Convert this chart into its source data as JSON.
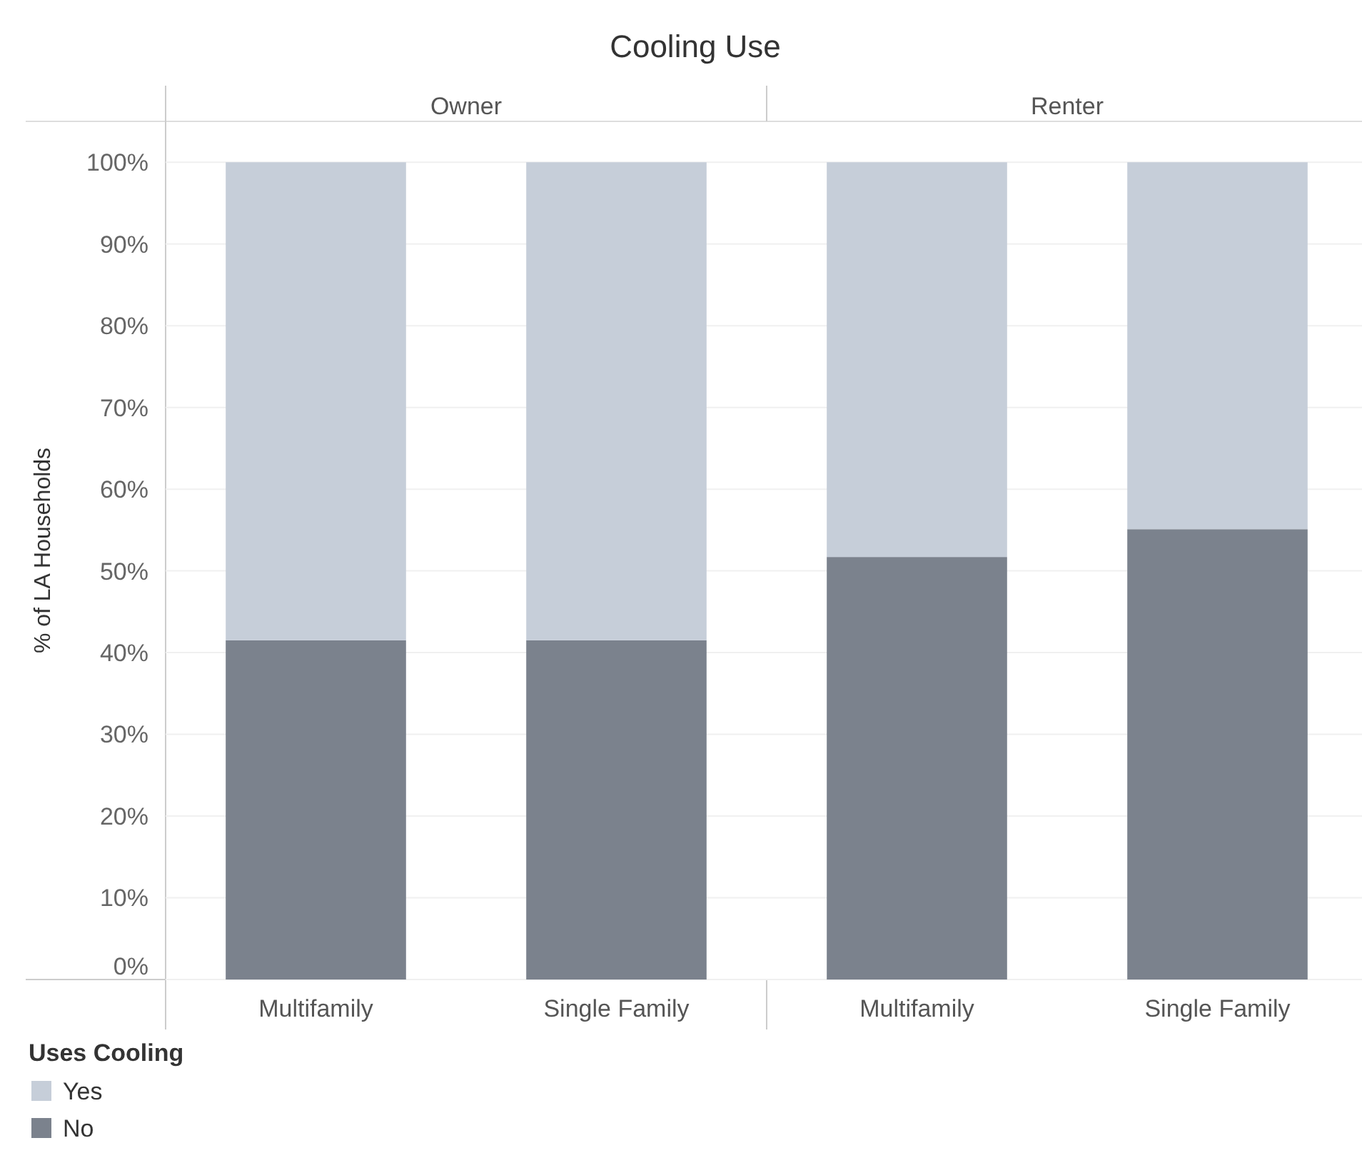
{
  "chart_data": {
    "type": "bar",
    "title": "Cooling Use",
    "ylabel": "% of LA Households",
    "categories": [
      "Multifamily",
      "Single Family",
      "Multifamily",
      "Single Family"
    ],
    "annotations": [
      "Owner",
      "Renter"
    ],
    "stacked": true,
    "series": [
      {
        "name": "No",
        "color": "#7b828d",
        "values": [
          41.5,
          41.5,
          51.7,
          55.1
        ]
      },
      {
        "name": "Yes",
        "color": "#c6ced9",
        "values": [
          58.5,
          58.5,
          48.3,
          44.9
        ]
      }
    ],
    "ylim": [
      0,
      105
    ],
    "yticks": [
      {
        "value": 0,
        "label": "0%"
      },
      {
        "value": 10,
        "label": "10%"
      },
      {
        "value": 20,
        "label": "20%"
      },
      {
        "value": 30,
        "label": "30%"
      },
      {
        "value": 40,
        "label": "40%"
      },
      {
        "value": 50,
        "label": "50%"
      },
      {
        "value": 60,
        "label": "60%"
      },
      {
        "value": 70,
        "label": "70%"
      },
      {
        "value": 80,
        "label": "80%"
      },
      {
        "value": 90,
        "label": "90%"
      },
      {
        "value": 100,
        "label": "100%"
      }
    ],
    "grid": "y",
    "legend": "bottom left",
    "legend_title": "Uses Cooling"
  }
}
